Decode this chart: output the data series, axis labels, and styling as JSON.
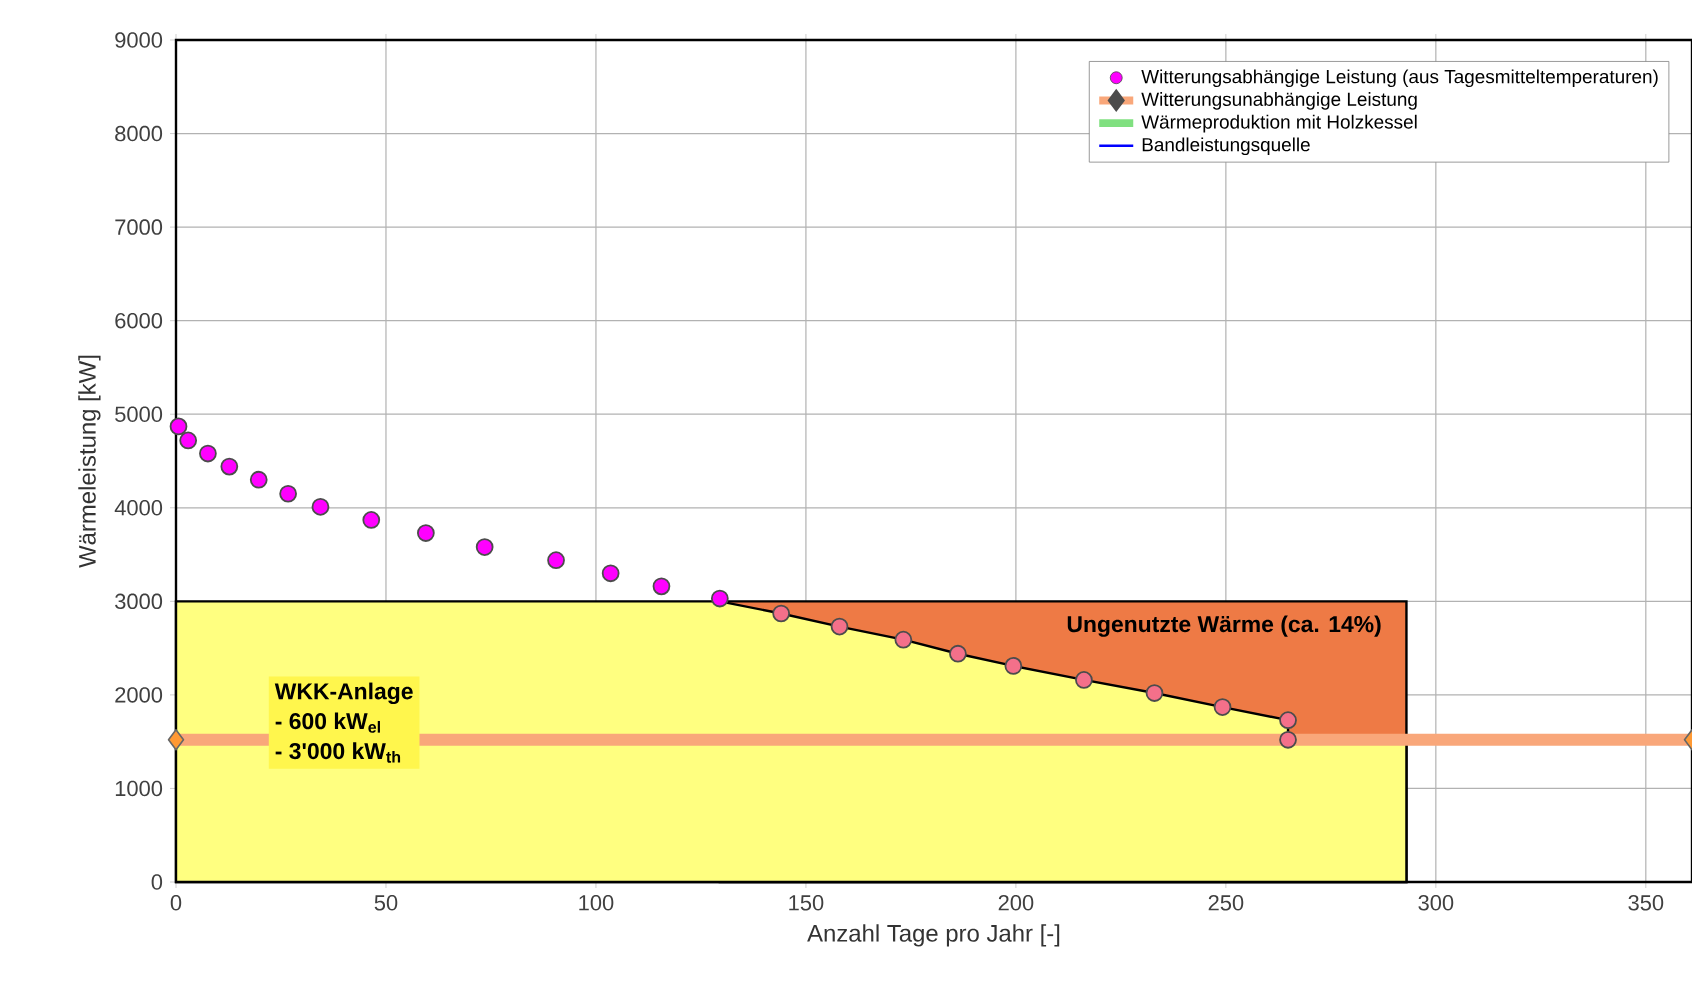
{
  "chart_data": {
    "type": "scatter",
    "xlabel": "Anzahl Tage pro Jahr [-]",
    "ylabel": "Wärmeleistung [kW]",
    "xlim": [
      0,
      361
    ],
    "ylim": [
      0,
      9000
    ],
    "xticks": [
      0,
      50,
      100,
      150,
      200,
      250,
      300,
      350
    ],
    "yticks": [
      0,
      1000,
      2000,
      3000,
      4000,
      5000,
      6000,
      7000,
      8000,
      9000
    ],
    "grid": true,
    "legend": "top right",
    "series": [
      {
        "type": "area",
        "color": "#ee7a45",
        "x": [
          129.5,
          293
        ],
        "values": [
          3000,
          3000
        ]
      },
      {
        "type": "area",
        "color": "#ffff80",
        "x": [
          0,
          129.5,
          144.1,
          158,
          173.2,
          186.2,
          199.4,
          216.2,
          233,
          249.2,
          264.8,
          264.8,
          293
        ],
        "values": [
          3000,
          3000,
          2870,
          2730,
          2590,
          2440,
          2310,
          2160,
          2020,
          1870,
          1730,
          1520,
          1520
        ]
      },
      {
        "name": "Witterungsabhängige Leistung (aus Tagesmitteltemperaturen)",
        "color": "#ff00ff",
        "marker": "circle",
        "x": [
          0.6,
          2.9,
          7.6,
          12.7,
          19.7,
          26.7,
          34.4,
          46.5,
          59.5,
          73.5,
          90.5,
          103.5,
          115.6,
          129.5,
          144.1,
          158,
          173.2,
          186.2,
          199.4,
          216.2,
          233,
          249.2,
          264.8,
          264.8
        ],
        "values": [
          4870,
          4720,
          4580,
          4440,
          4300,
          4150,
          4010,
          3870,
          3730,
          3580,
          3440,
          3300,
          3160,
          3030,
          2870,
          2730,
          2590,
          2440,
          2310,
          2160,
          2020,
          1870,
          1730,
          1520
        ],
        "colors": [
          "#ff00ff",
          "#ff00ff",
          "#ff00ff",
          "#ff00ff",
          "#ff00ff",
          "#ff00ff",
          "#ff00ff",
          "#ff00ff",
          "#ff00ff",
          "#ff00ff",
          "#ff00ff",
          "#ff00ff",
          "#ff00ff",
          "#ff00ff",
          "#f4708a",
          "#f4708a",
          "#f4708a",
          "#f4708a",
          "#f4708a",
          "#f4708a",
          "#f4708a",
          "#f4708a",
          "#f4708a",
          "#f4708a"
        ]
      },
      {
        "type": "line",
        "name": "Witterungsunabhängige Leistung",
        "color": "#f9a77a",
        "marker": "diamond",
        "x": [
          0,
          361
        ],
        "values": [
          1520,
          1520
        ]
      },
      {
        "type": "line",
        "name": "Wärmeproduktion mit Holzkessel",
        "color": "#80e080"
      },
      {
        "type": "line",
        "name": "Bandleistungsquelle",
        "color": "#0000ff"
      }
    ],
    "annotations": [
      "Ungenutzte Wärme (ca. 14%)",
      "WKK-Anlage",
      "- 600 kW$_{el}$",
      "- 3'000 kW$_{th}$"
    ]
  }
}
